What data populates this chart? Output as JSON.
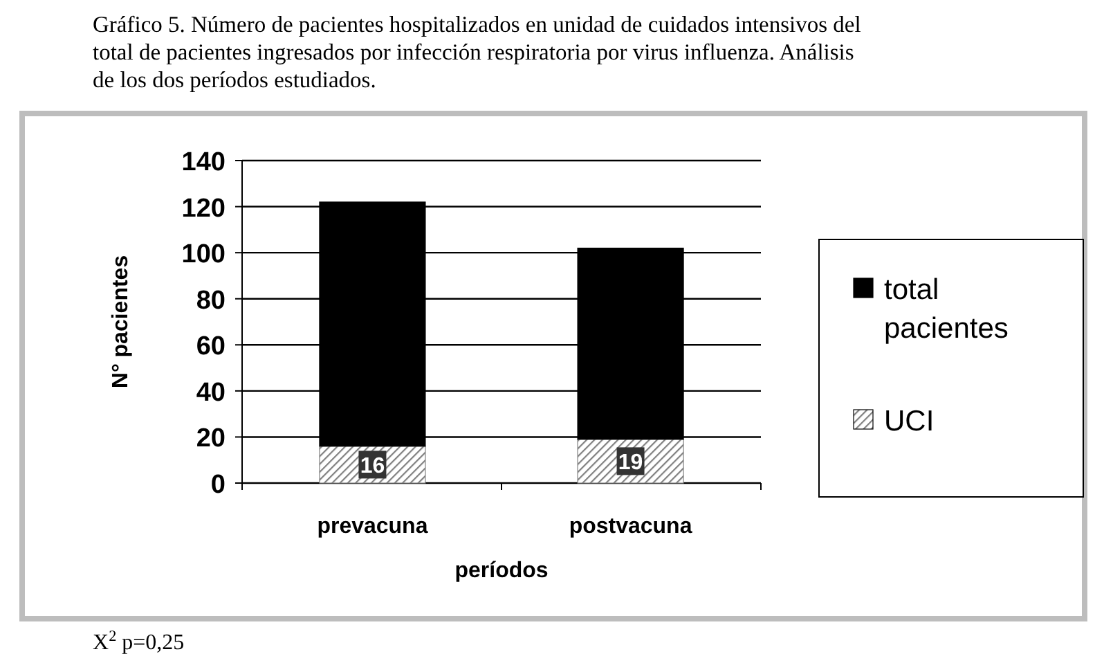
{
  "chart_data": {
    "type": "bar",
    "title": "Gráfico 5. Número de pacientes hospitalizados en unidad de cuidados intensivos del total de pacientes ingresados por infección respiratoria por virus influenza. Análisis de los dos períodos estudiados.",
    "xlabel": "períodos",
    "ylabel": "N° pacientes",
    "categories": [
      "prevacuna",
      "postvacuna"
    ],
    "stacked": true,
    "series": [
      {
        "name": "UCI",
        "color": "#808080",
        "values": [
          16,
          19
        ],
        "value_labels": [
          "16",
          "19"
        ]
      },
      {
        "name": "total pacientes",
        "color": "#000000",
        "values": [
          106,
          83
        ]
      }
    ],
    "ylim": [
      0,
      140
    ],
    "yticks": [
      0,
      20,
      40,
      60,
      80,
      100,
      120,
      140
    ],
    "grid": "y",
    "legend": "right",
    "annotations": [
      "X$^{2}$ p=0,25"
    ]
  }
}
